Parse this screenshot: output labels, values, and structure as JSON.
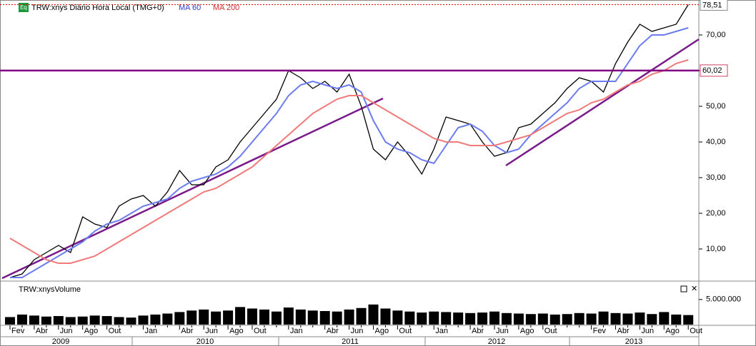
{
  "chart_data": {
    "type": "line",
    "title": "TRW:xnys Diário Hora Local (TMG+0)",
    "badge": "Eq",
    "volume_title": "TRW:xnysVolume",
    "categories": [
      "Fev",
      null,
      "Abr",
      null,
      "Jun",
      null,
      "Ago",
      null,
      "Out",
      null,
      null,
      "Jan",
      null,
      null,
      "Abr",
      null,
      "Jun",
      null,
      "Ago",
      null,
      "Out",
      null,
      null,
      "Jan",
      null,
      null,
      "Abr",
      null,
      "Jun",
      null,
      "Ago",
      null,
      "Out",
      null,
      null,
      "Jan",
      null,
      null,
      "Abr",
      null,
      "Jun",
      null,
      "Ago",
      null,
      "Out",
      null,
      null,
      null,
      "Fev",
      null,
      "Abr",
      null,
      "Jun",
      null,
      "Ago",
      null,
      "Out"
    ],
    "years": [
      "2009",
      "2010",
      "2011",
      "2012",
      "2013"
    ],
    "series": [
      {
        "name": "TRW:xnys Diário Hora Local (TMG+0)",
        "color": "#000000",
        "values": [
          2,
          3,
          7,
          9,
          11,
          9,
          19,
          17,
          16,
          22,
          24,
          25,
          22,
          26,
          32,
          28,
          28,
          33,
          35,
          40,
          44,
          48,
          52,
          60,
          58,
          55,
          57,
          54,
          59,
          50,
          38,
          35,
          40,
          36,
          31,
          38,
          47,
          46,
          45,
          40,
          36,
          37,
          44,
          45,
          48,
          51,
          55,
          58,
          57,
          54,
          62,
          68,
          73,
          71,
          72,
          73,
          78.5
        ]
      },
      {
        "name": "MA 60",
        "color": "#6a7cf0",
        "values": [
          2,
          2,
          4,
          6,
          8,
          10,
          12,
          15,
          17,
          18,
          20,
          22,
          23,
          24,
          27,
          29,
          30,
          31,
          33,
          36,
          40,
          44,
          48,
          53,
          56,
          57,
          56,
          55,
          56,
          54,
          46,
          40,
          38,
          37,
          35,
          34,
          39,
          44,
          45,
          43,
          39,
          37,
          38,
          42,
          45,
          48,
          51,
          55,
          57,
          57,
          57,
          62,
          67,
          70,
          70,
          71,
          72
        ]
      },
      {
        "name": "MA 200",
        "color": "#f07a7a",
        "values": [
          13,
          11,
          9,
          7,
          6,
          6,
          7,
          8,
          10,
          12,
          14,
          16,
          18,
          20,
          22,
          24,
          26,
          27,
          29,
          31,
          33,
          36,
          39,
          42,
          45,
          48,
          50,
          52,
          53,
          53,
          51,
          49,
          47,
          45,
          43,
          41,
          40,
          40,
          39,
          39,
          39,
          40,
          41,
          42,
          44,
          46,
          48,
          49,
          51,
          52,
          54,
          56,
          57,
          59,
          60,
          62,
          63
        ]
      },
      {
        "name": "TRW:xnysVolume",
        "type": "bar",
        "axis": "y2",
        "color": "#000000",
        "values": [
          1500000,
          2000000,
          1800000,
          1600000,
          1700000,
          1500000,
          1600000,
          1800000,
          1700000,
          1500000,
          1400000,
          1800000,
          2000000,
          2200000,
          2500000,
          2800000,
          3000000,
          2600000,
          2800000,
          3500000,
          3200000,
          3000000,
          2600000,
          3400000,
          3000000,
          2800000,
          2700000,
          2600000,
          3000000,
          3300000,
          4000000,
          3200000,
          2800000,
          2600000,
          2400000,
          2600000,
          2500000,
          2400000,
          2300000,
          2400000,
          2600000,
          2300000,
          2200000,
          2100000,
          2200000,
          2000000,
          2100000,
          2300000,
          2200000,
          2600000,
          2300000,
          2200000,
          2400000,
          2100000,
          2500000,
          2000000,
          1900000
        ]
      }
    ],
    "ylim": [
      1.2,
      78.8
    ],
    "yticks": [
      {
        "value": 10,
        "label": "10,00"
      },
      {
        "value": 20,
        "label": "20,00"
      },
      {
        "value": 30,
        "label": "30,00"
      },
      {
        "value": 40,
        "label": "40,00"
      },
      {
        "value": 50,
        "label": "50,00"
      },
      {
        "value": 60,
        "label": "60,00"
      },
      {
        "value": 70,
        "label": "70,00"
      }
    ],
    "y2lim": [
      0,
      8100000
    ],
    "y2ticks": [
      {
        "value": 5000000,
        "label": "5.000.000"
      }
    ],
    "hlines": [
      {
        "value": 60.02,
        "label": "60,02",
        "color": "#800080"
      }
    ],
    "last_price": {
      "value": 78.51,
      "label": "78,51",
      "color": "#e00000"
    }
  }
}
